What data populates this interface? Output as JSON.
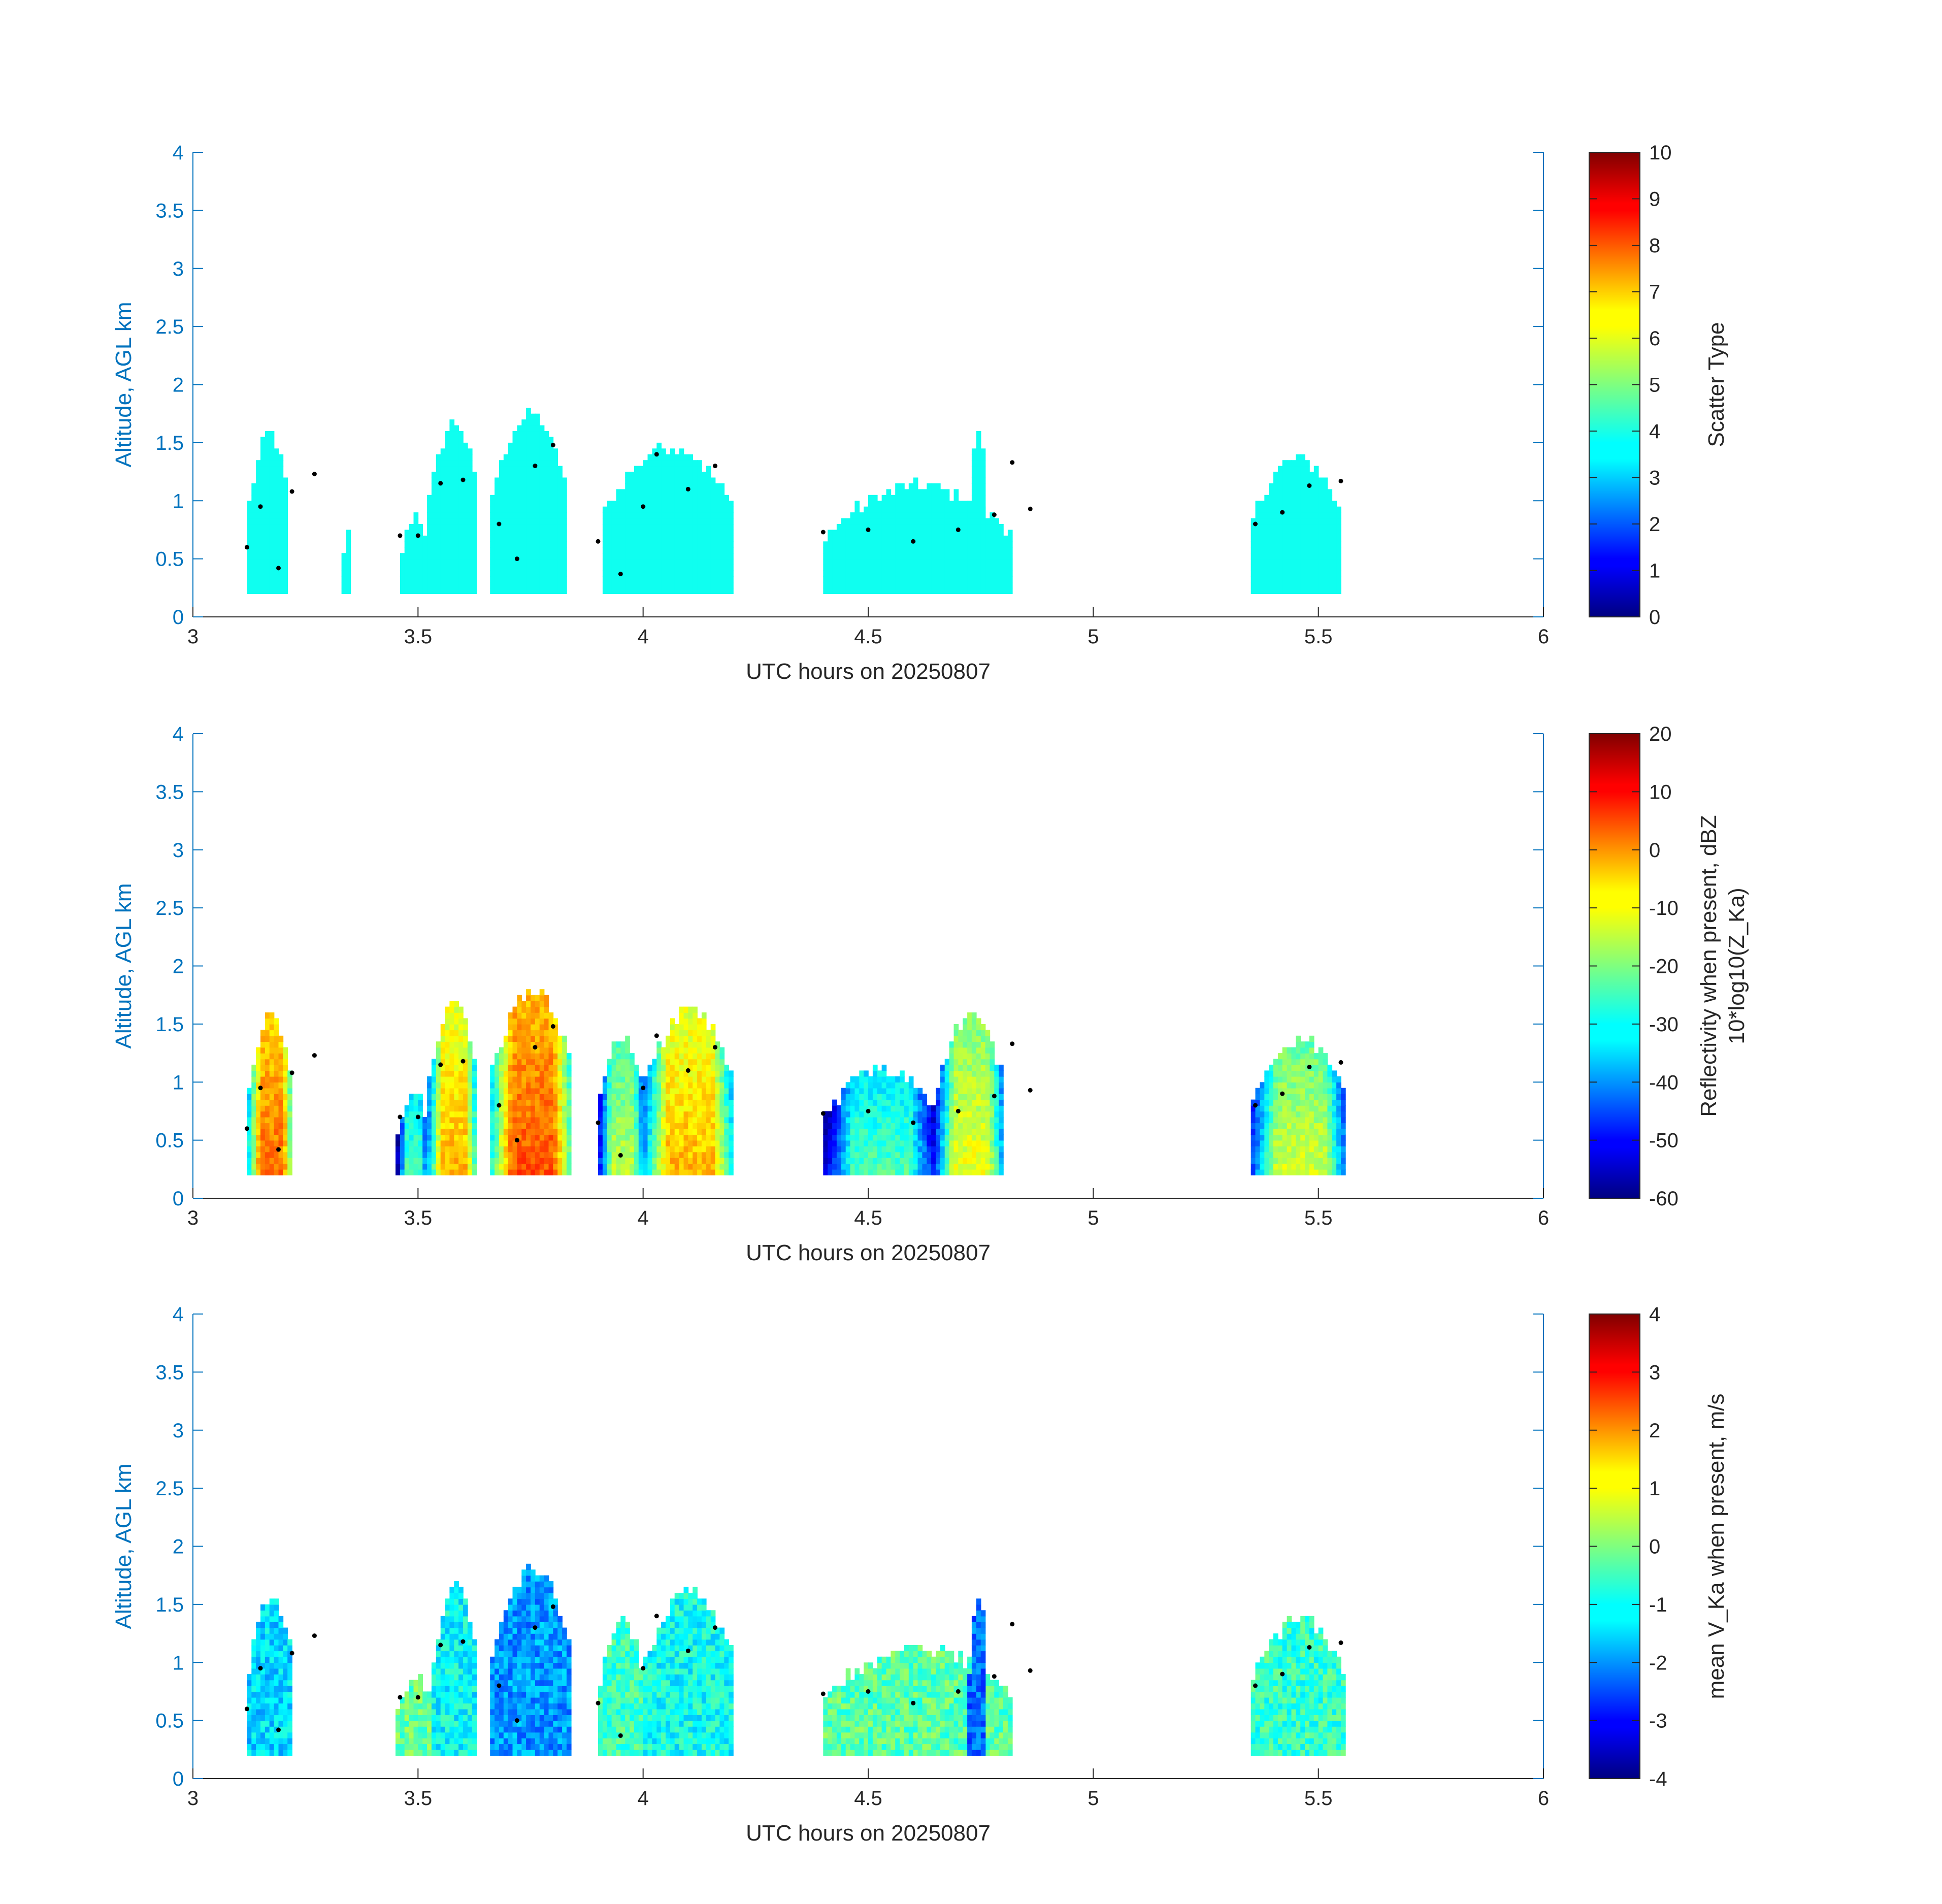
{
  "figure": {
    "background": "#ffffff",
    "axis_color": "#0072bd",
    "text_color": "#262626",
    "colormap": "jet"
  },
  "chart_data": [
    {
      "type": "heatmap",
      "panel": "scatter-type",
      "xlabel": "UTC hours on 20250807",
      "ylabel": "Altitude, AGL km",
      "xlim": [
        3,
        6
      ],
      "ylim": [
        0,
        4
      ],
      "xticks": [
        "3",
        "3.5",
        "4",
        "4.5",
        "5",
        "5.5",
        "6"
      ],
      "yticks": [
        "0",
        "0.5",
        "1",
        "1.5",
        "2",
        "2.5",
        "3",
        "3.5",
        "4"
      ],
      "colorbar": {
        "label": "Scatter Type",
        "label_sub": "",
        "range": [
          0,
          10
        ],
        "ticks": [
          "0",
          "1",
          "2",
          "3",
          "4",
          "5",
          "6",
          "7",
          "8",
          "9",
          "10"
        ]
      },
      "cloud_columns": [
        {
          "x0": 3.12,
          "x1": 3.21,
          "top": 1.55,
          "value": 3.9
        },
        {
          "x0": 3.33,
          "x1": 3.35,
          "top": 0.72,
          "value": 3.9
        },
        {
          "x0": 3.46,
          "x1": 3.52,
          "top": 0.85,
          "value": 3.9
        },
        {
          "x0": 3.52,
          "x1": 3.63,
          "top": 1.65,
          "value": 3.9
        },
        {
          "x0": 3.66,
          "x1": 3.83,
          "top": 1.72,
          "value": 3.9
        },
        {
          "x0": 3.91,
          "x1": 4.2,
          "top": 1.45,
          "value": 3.9
        },
        {
          "x0": 4.4,
          "x1": 4.82,
          "top": 1.1,
          "value": 3.9
        },
        {
          "x0": 4.72,
          "x1": 4.76,
          "top": 1.55,
          "value": 3.9
        },
        {
          "x0": 5.35,
          "x1": 5.55,
          "top": 1.35,
          "value": 3.9
        }
      ],
      "points": [
        [
          3.12,
          0.6
        ],
        [
          3.15,
          0.95
        ],
        [
          3.19,
          0.42
        ],
        [
          3.22,
          1.08
        ],
        [
          3.27,
          1.23
        ],
        [
          3.46,
          0.7
        ],
        [
          3.5,
          0.7
        ],
        [
          3.55,
          1.15
        ],
        [
          3.6,
          1.18
        ],
        [
          3.68,
          0.8
        ],
        [
          3.72,
          0.5
        ],
        [
          3.76,
          1.3
        ],
        [
          3.8,
          1.48
        ],
        [
          3.9,
          0.65
        ],
        [
          3.95,
          0.37
        ],
        [
          4.0,
          0.95
        ],
        [
          4.03,
          1.4
        ],
        [
          4.1,
          1.1
        ],
        [
          4.16,
          1.3
        ],
        [
          4.4,
          0.73
        ],
        [
          4.5,
          0.75
        ],
        [
          4.6,
          0.65
        ],
        [
          4.7,
          0.75
        ],
        [
          4.78,
          0.88
        ],
        [
          4.82,
          1.33
        ],
        [
          4.86,
          0.93
        ],
        [
          5.36,
          0.8
        ],
        [
          5.42,
          0.9
        ],
        [
          5.48,
          1.13
        ],
        [
          5.55,
          1.17
        ]
      ]
    },
    {
      "type": "heatmap",
      "panel": "reflectivity",
      "xlabel": "UTC hours on 20250807",
      "ylabel": "Altitude, AGL km",
      "xlim": [
        3,
        6
      ],
      "ylim": [
        0,
        4
      ],
      "xticks": [
        "3",
        "3.5",
        "4",
        "4.5",
        "5",
        "5.5",
        "6"
      ],
      "yticks": [
        "0",
        "0.5",
        "1",
        "1.5",
        "2",
        "2.5",
        "3",
        "3.5",
        "4"
      ],
      "colorbar": {
        "label": "Reflectivity when present, dBZ",
        "label_sub": "10*log10(Z_Ka)",
        "range": [
          -60,
          20
        ],
        "ticks": [
          "-60",
          "-50",
          "-40",
          "-30",
          "-20",
          "-10",
          "0",
          "10",
          "20"
        ]
      },
      "cloud_columns": [
        {
          "x0": 3.12,
          "x1": 3.22,
          "top": 1.55,
          "value": 3
        },
        {
          "x0": 3.45,
          "x1": 3.52,
          "top": 0.9,
          "value": -22
        },
        {
          "x0": 3.52,
          "x1": 3.63,
          "top": 1.65,
          "value": -3
        },
        {
          "x0": 3.66,
          "x1": 3.84,
          "top": 1.78,
          "value": 5
        },
        {
          "x0": 3.9,
          "x1": 4.0,
          "top": 1.35,
          "value": -14
        },
        {
          "x0": 4.0,
          "x1": 4.2,
          "top": 1.6,
          "value": -3
        },
        {
          "x0": 4.4,
          "x1": 4.65,
          "top": 1.1,
          "value": -22
        },
        {
          "x0": 4.65,
          "x1": 4.8,
          "top": 1.55,
          "value": -10
        },
        {
          "x0": 5.35,
          "x1": 5.56,
          "top": 1.35,
          "value": -12
        }
      ],
      "points": [
        [
          3.12,
          0.6
        ],
        [
          3.15,
          0.95
        ],
        [
          3.19,
          0.42
        ],
        [
          3.22,
          1.08
        ],
        [
          3.27,
          1.23
        ],
        [
          3.46,
          0.7
        ],
        [
          3.5,
          0.7
        ],
        [
          3.55,
          1.15
        ],
        [
          3.6,
          1.18
        ],
        [
          3.68,
          0.8
        ],
        [
          3.72,
          0.5
        ],
        [
          3.76,
          1.3
        ],
        [
          3.8,
          1.48
        ],
        [
          3.9,
          0.65
        ],
        [
          3.95,
          0.37
        ],
        [
          4.0,
          0.95
        ],
        [
          4.03,
          1.4
        ],
        [
          4.1,
          1.1
        ],
        [
          4.16,
          1.3
        ],
        [
          4.4,
          0.73
        ],
        [
          4.5,
          0.75
        ],
        [
          4.6,
          0.65
        ],
        [
          4.7,
          0.75
        ],
        [
          4.78,
          0.88
        ],
        [
          4.82,
          1.33
        ],
        [
          4.86,
          0.93
        ],
        [
          5.36,
          0.8
        ],
        [
          5.42,
          0.9
        ],
        [
          5.48,
          1.13
        ],
        [
          5.55,
          1.17
        ]
      ]
    },
    {
      "type": "heatmap",
      "panel": "mean-velocity",
      "xlabel": "UTC hours on 20250807",
      "ylabel": "Altitude, AGL km",
      "xlim": [
        3,
        6
      ],
      "ylim": [
        0,
        4
      ],
      "xticks": [
        "3",
        "3.5",
        "4",
        "4.5",
        "5",
        "5.5",
        "6"
      ],
      "yticks": [
        "0",
        "0.5",
        "1",
        "1.5",
        "2",
        "2.5",
        "3",
        "3.5",
        "4"
      ],
      "colorbar": {
        "label": "mean V_Ka when present, m/s",
        "label_sub": "",
        "range": [
          -4,
          4
        ],
        "ticks": [
          "-4",
          "-3",
          "-2",
          "-1",
          "0",
          "1",
          "2",
          "3",
          "4"
        ]
      },
      "cloud_columns": [
        {
          "x0": 3.12,
          "x1": 3.22,
          "top": 1.55,
          "value": -1.3
        },
        {
          "x0": 3.45,
          "x1": 3.53,
          "top": 0.85,
          "value": -0.2
        },
        {
          "x0": 3.53,
          "x1": 3.63,
          "top": 1.65,
          "value": -1.0
        },
        {
          "x0": 3.66,
          "x1": 3.84,
          "top": 1.78,
          "value": -1.8
        },
        {
          "x0": 3.9,
          "x1": 4.0,
          "top": 1.35,
          "value": -0.5
        },
        {
          "x0": 4.0,
          "x1": 4.2,
          "top": 1.6,
          "value": -0.9
        },
        {
          "x0": 4.4,
          "x1": 4.82,
          "top": 1.1,
          "value": -0.3
        },
        {
          "x0": 4.72,
          "x1": 4.76,
          "top": 1.55,
          "value": -2.2
        },
        {
          "x0": 5.35,
          "x1": 5.56,
          "top": 1.35,
          "value": -0.6
        }
      ],
      "points": [
        [
          3.12,
          0.6
        ],
        [
          3.15,
          0.95
        ],
        [
          3.19,
          0.42
        ],
        [
          3.22,
          1.08
        ],
        [
          3.27,
          1.23
        ],
        [
          3.46,
          0.7
        ],
        [
          3.5,
          0.7
        ],
        [
          3.55,
          1.15
        ],
        [
          3.6,
          1.18
        ],
        [
          3.68,
          0.8
        ],
        [
          3.72,
          0.5
        ],
        [
          3.76,
          1.3
        ],
        [
          3.8,
          1.48
        ],
        [
          3.9,
          0.65
        ],
        [
          3.95,
          0.37
        ],
        [
          4.0,
          0.95
        ],
        [
          4.03,
          1.4
        ],
        [
          4.1,
          1.1
        ],
        [
          4.16,
          1.3
        ],
        [
          4.4,
          0.73
        ],
        [
          4.5,
          0.75
        ],
        [
          4.6,
          0.65
        ],
        [
          4.7,
          0.75
        ],
        [
          4.78,
          0.88
        ],
        [
          4.82,
          1.33
        ],
        [
          4.86,
          0.93
        ],
        [
          5.36,
          0.8
        ],
        [
          5.42,
          0.9
        ],
        [
          5.48,
          1.13
        ],
        [
          5.55,
          1.17
        ]
      ]
    }
  ]
}
